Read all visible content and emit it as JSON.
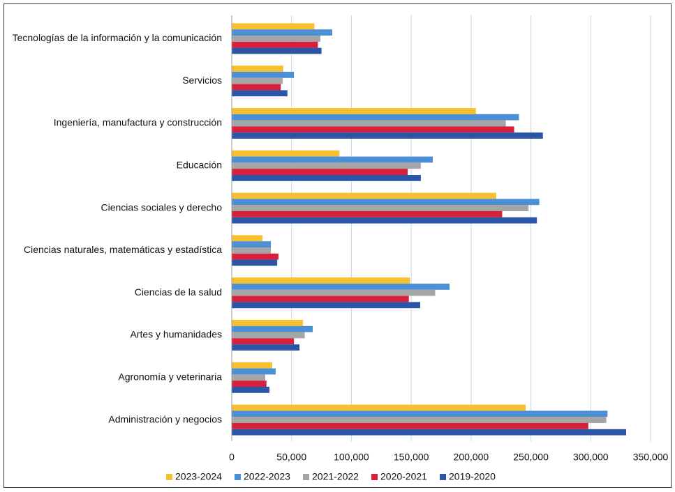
{
  "chart_data": {
    "type": "hbar",
    "categories": [
      "Tecnologías de la información y la comunicación",
      "Servicios",
      "Ingeniería, manufactura y construcción",
      "Educación",
      "Ciencias sociales y derecho",
      "Ciencias naturales, matemáticas y estadística",
      "Ciencias de la salud",
      "Artes y humanidades",
      "Agronomía y veterinaria",
      "Administración y negocios"
    ],
    "series": [
      {
        "name": "2023-2024",
        "color": "#f6c02e",
        "values": [
          69000,
          43000,
          204000,
          90000,
          221000,
          25700,
          149000,
          59500,
          33800,
          245600
        ]
      },
      {
        "name": "2022-2023",
        "color": "#4b8fd5",
        "values": [
          84000,
          52000,
          240000,
          168000,
          257000,
          32700,
          182000,
          67700,
          36700,
          314000
        ]
      },
      {
        "name": "2021-2022",
        "color": "#a5a5a5",
        "values": [
          74000,
          42500,
          229000,
          158000,
          248000,
          32700,
          170000,
          61000,
          28000,
          313000
        ]
      },
      {
        "name": "2020-2021",
        "color": "#d81f3b",
        "values": [
          72000,
          41000,
          236000,
          147000,
          226000,
          39000,
          148000,
          52000,
          29000,
          298000
        ]
      },
      {
        "name": "2019-2020",
        "color": "#2b56a8",
        "values": [
          75000,
          46500,
          260000,
          158000,
          255000,
          38000,
          157500,
          56600,
          31500,
          329600
        ]
      }
    ],
    "xlim": [
      0,
      350000
    ],
    "xticks": [
      0,
      {
        "value": 50000,
        "label": "50,000"
      },
      {
        "value": 100000,
        "label": "100,000"
      },
      {
        "value": 150000,
        "label": "150,000"
      },
      {
        "value": 200000,
        "label": "200,000"
      },
      {
        "value": 250000,
        "label": "250,000"
      },
      {
        "value": 300000,
        "label": "300,000"
      },
      {
        "value": 350000,
        "label": "350,000"
      }
    ],
    "grid": true,
    "legend": "bottom"
  }
}
